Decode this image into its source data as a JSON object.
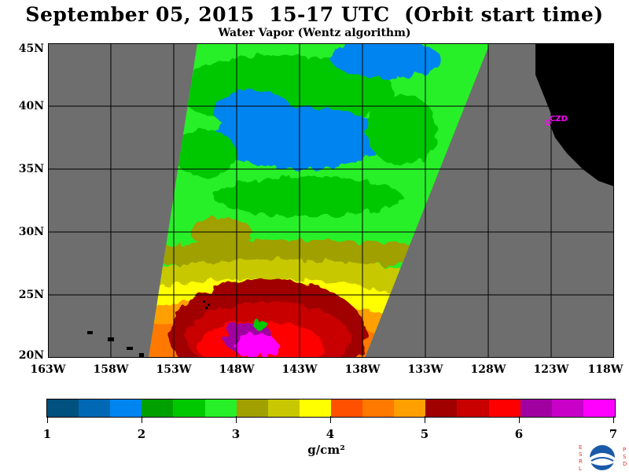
{
  "title": "September 05, 2015  15-17 UTC  (Orbit start time)",
  "subtitle": "Water Vapor (Wentz algorithm)",
  "map": {
    "lat_labels": [
      "45N",
      "40N",
      "35N",
      "30N",
      "25N",
      "20N"
    ],
    "lon_labels": [
      "163W",
      "158W",
      "153W",
      "148W",
      "143W",
      "138W",
      "133W",
      "128W",
      "123W",
      "118W"
    ],
    "station_label": "CZD",
    "colors": {
      "no_data": "#6e6e6e",
      "land": "#000000",
      "grid": "#000000",
      "station": "#ff00ff"
    }
  },
  "colorbar": {
    "colors": [
      "#00517d",
      "#0068b4",
      "#0084f0",
      "#00a000",
      "#00c800",
      "#28f028",
      "#a0a000",
      "#c8c800",
      "#ffff00",
      "#ff5000",
      "#ff7800",
      "#ffa000",
      "#a00000",
      "#c80000",
      "#ff0000",
      "#a000a0",
      "#c800c8",
      "#ff00ff"
    ],
    "tick_labels": [
      "1",
      "2",
      "3",
      "4",
      "5",
      "6",
      "7"
    ],
    "units": "g/cm²"
  },
  "logo": {
    "left_letters": "ESRL",
    "right_letters": "PSD",
    "center": "NOAA"
  }
}
